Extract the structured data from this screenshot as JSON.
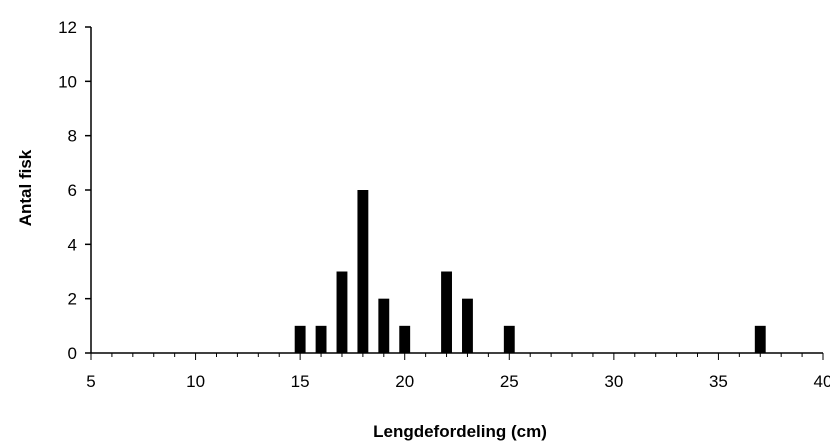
{
  "chart_data": {
    "type": "bar",
    "title": "",
    "xlabel": "Lengdefordeling (cm)",
    "ylabel": "Antal fisk",
    "xlim": [
      5,
      40
    ],
    "ylim": [
      0,
      12
    ],
    "x_ticks": [
      5,
      10,
      15,
      20,
      25,
      30,
      35,
      40
    ],
    "y_ticks": [
      0,
      2,
      4,
      6,
      8,
      10,
      12
    ],
    "grid": false,
    "legend": "none",
    "bar_color": "#000000",
    "x": [
      15,
      16,
      17,
      18,
      19,
      20,
      22,
      23,
      25,
      37
    ],
    "values": [
      1,
      1,
      3,
      6,
      2,
      1,
      3,
      2,
      1,
      1
    ]
  }
}
